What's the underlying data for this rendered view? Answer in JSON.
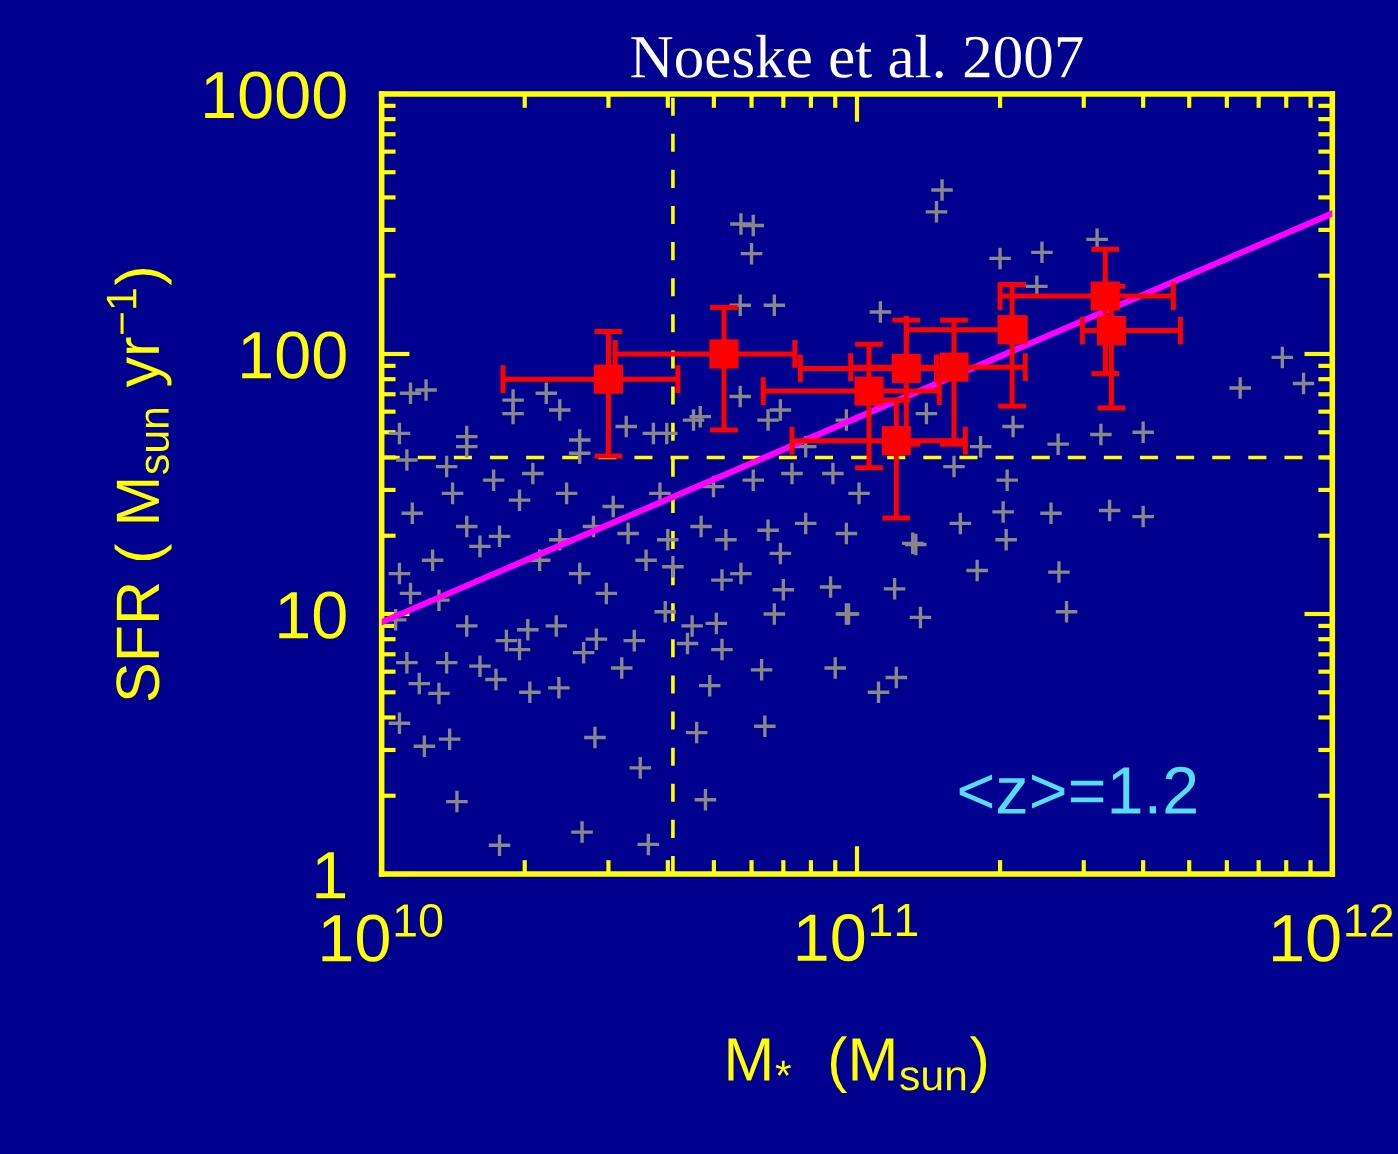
{
  "chart_data": {
    "type": "scatter",
    "title": "Noeske et al. 2007",
    "xlabel": "M$_{*}$  (M$_{sun}$)",
    "ylabel": "SFR ( M$_{sun}$ yr$^{−1}$)",
    "annotations": [
      "<z>=1.2"
    ],
    "log": "xy",
    "grid": false,
    "xlim": [
      10000000000.0,
      1000000000000.0
    ],
    "xticks": [
      {
        "value": 10000000000.0,
        "label": "10$^{10}$"
      },
      {
        "value": 100000000000.0,
        "label": "10$^{11}$"
      },
      {
        "value": 1000000000000.0,
        "label": "10$^{12}$"
      }
    ],
    "ylim": [
      1,
      1000
    ],
    "yticks": [
      1,
      10,
      100,
      1000
    ],
    "ref_lines": [
      {
        "axis": "x",
        "value": 41000000000.0,
        "color": "#ffff00",
        "line_style": "dashed"
      },
      {
        "axis": "y",
        "value": 40,
        "color": "#ffff00",
        "line_style": "dashed"
      }
    ],
    "series": [
      {
        "color": "#888888",
        "marker": "cross",
        "x": [
          57000000000.0,
          60000000000.0,
          151000000000.0,
          147000000000.0,
          60500000000.0,
          320000000000.0,
          245000000000.0,
          200000000000.0,
          785000000000.0,
          870000000000.0,
          640000000000.0,
          400000000000.0,
          326000000000.0,
          265000000000.0,
          340000000000.0,
          400000000000.0,
          256000000000.0,
          207000000000.0,
          206000000000.0,
          179000000000.0,
          266000000000.0,
          276000000000.0,
          136000000000.0,
          120000000000.0,
          133000000000.0,
          96000000000.0,
          121000000000.0,
          111000000000.0,
          203000000000.0,
          165000000000.0,
          14400000000.0,
          17700000000.0,
          26400000000.0,
          36400000000.0,
          48000000000.0,
          35000000000.0,
          28100000000.0,
          46000000000.0,
          64000000000.0,
          12300000000.0,
          13900000000.0,
          10900000000.0,
          13200000000.0,
          20500000000.0,
          23600000000.0,
          17400000000.0,
          12000000000.0,
          11300000000.0,
          13700000000.0,
          16100000000.0,
          19500000000.0,
          26600000000.0,
          32000000000.0,
          34000000000.0,
          44000000000.0,
          49000000000.0,
          52000000000.0,
          63000000000.0,
          90000000000.0,
          95000000000.0,
          67000000000.0,
          88000000000.0,
          70000000000.0,
          50600000000.0,
          45000000000.0,
          39500000000.0,
          28300000000.0,
          23300000000.0,
          20300000000.0,
          18300000000.0,
          15100000000.0,
          10700000000.0,
          11500000000.0,
          10900000000.0,
          13200000000.0,
          12800000000.0,
          15100000000.0,
          17700000000.0,
          21500000000.0,
          26100000000.0,
          29700000000.0,
          36000000000.0,
          41000000000.0,
          52000000000.0,
          57000000000.0,
          69000000000.0,
          65000000000.0,
          78000000000.0,
          95000000000.0,
          53000000000.0,
          47000000000.0,
          40000000000.0,
          33000000000.0,
          27900000000.0,
          23700000000.0,
          19500000000.0,
          24500000000.0,
          30700000000.0,
          38500000000.0,
          49900000000.0,
          60500000000.0,
          73000000000.0,
          14100000000.0,
          11600000000.0,
          16100000000.0,
          11300000000.0,
          13700000000.0,
          17200000000.0,
          20800000000.0,
          26100000000.0,
          32700000000.0,
          39800000000.0,
          45300000000.0,
          56800000000.0,
          69000000000.0,
          12400000000.0,
          10900000000.0,
          15100000000.0,
          18900000000.0,
          23700000000.0,
          11500000000.0,
          56800000000.0,
          67000000000.0,
          112000000000.0,
          239000000000.0,
          131000000000.0,
          101000000000.0,
          89000000000.0,
          78000000000.0,
          65000000000.0,
          160000000000.0,
          182000000000.0,
          213000000000.0,
          140000000000.0,
          95000000000.0,
          46800000000.0,
          37300000000.0,
          26100000000.0,
          22200000000.0,
          18900000000.0,
          15100000000.0
        ],
        "values": [
          316,
          243,
          427,
          352,
          312,
          276,
          246,
          233,
          97,
          77,
          74,
          50,
          49,
          45,
          25,
          23.7,
          24.4,
          32.7,
          19.3,
          14.7,
          14.5,
          10.2,
          9.7,
          12.5,
          18.5,
          10,
          5.7,
          5.0,
          24.7,
          22.3,
          1.9,
          1.29,
          1.45,
          1.3,
          1.93,
          2.56,
          3.35,
          3.5,
          3.7,
          3.1,
          3.3,
          3.8,
          4.95,
          5.0,
          5.2,
          5.6,
          5.4,
          6.5,
          6.5,
          6.3,
          7.3,
          7.1,
          6.2,
          7.9,
          7.7,
          5.3,
          7.3,
          6.1,
          6.2,
          10,
          10,
          12.7,
          12.4,
          9.2,
          9.0,
          10.2,
          8.0,
          9.0,
          8.7,
          7.9,
          9.0,
          9.5,
          12,
          14.3,
          11.3,
          16.1,
          21.7,
          19.9,
          16.1,
          14.3,
          12.0,
          16.1,
          15.2,
          13.5,
          14.3,
          17.1,
          21.0,
          22.3,
          20.4,
          19.3,
          21.7,
          19.3,
          20.4,
          21.7,
          19.3,
          27.4,
          29.1,
          25.9,
          29.1,
          30.9,
          32.7,
          34.7,
          29.1,
          24.4,
          18.2,
          39.1,
          36.9,
          32.7,
          34.7,
          41.5,
          52.6,
          49.5,
          55.7,
          68.6,
          60.9,
          72.7,
          49.5,
          44,
          66.5,
          60.9,
          70.6,
          154,
          154,
          145,
          182,
          18.7,
          29.1,
          34.7,
          44,
          55.7,
          36.9,
          44,
          52.6,
          59,
          55.7,
          57.4,
          49.5,
          46.7,
          70.6,
          59,
          48.1
        ]
      },
      {
        "color": "#ff0000",
        "marker": "square",
        "x": [
          30000000000.0,
          52500000000.0,
          106000000000.0,
          127000000000.0,
          160000000000.0,
          121000000000.0,
          212000000000.0,
          333000000000.0,
          343000000000.0
        ],
        "values": [
          80,
          100,
          72,
          88,
          89,
          46.4,
          124,
          167,
          123
        ],
        "xerrors": [
          [
            18000000000.0,
            42000000000.0
          ],
          [
            31000000000.0,
            74000000000.0
          ],
          [
            63500000000.0,
            149000000000.0
          ],
          [
            76000000000.0,
            147000000000.0
          ],
          [
            97000000000.0,
            226000000000.0
          ],
          [
            73000000000.0,
            169000000000.0
          ],
          [
            127000000000.0,
            226000000000.0
          ],
          [
            200000000000.0,
            463000000000.0
          ],
          [
            298000000000.0,
            479000000000.0
          ]
        ],
        "errors": [
          [
            40.5,
            122
          ],
          [
            51,
            151
          ],
          [
            36.5,
            109
          ],
          [
            45,
            135
          ],
          [
            45,
            135
          ],
          [
            23.4,
            66.5
          ],
          [
            63,
            185
          ],
          [
            84,
            253
          ],
          [
            62,
            182
          ]
        ]
      },
      {
        "type": "line",
        "color": "#ff00ff",
        "marker": "none",
        "line_style": "solid",
        "x": [
          10000000000.0,
          1000000000000.0
        ],
        "values": [
          9.3,
          347
        ]
      }
    ]
  }
}
